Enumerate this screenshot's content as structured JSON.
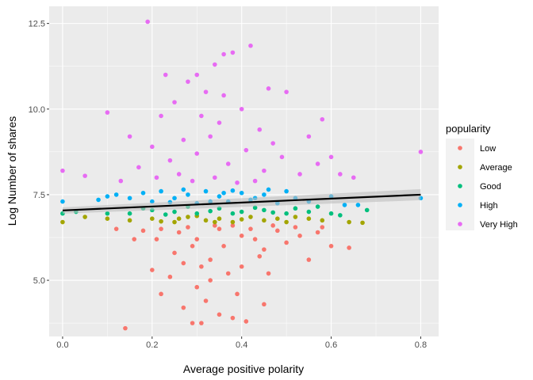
{
  "chart_data": {
    "type": "scatter",
    "xlabel": "Average positive polarity",
    "ylabel": "Log Number of shares",
    "xlim": [
      -0.03,
      0.84
    ],
    "ylim": [
      3.36,
      13.0
    ],
    "xticks": [
      0,
      0.2,
      0.4,
      0.6,
      0.8
    ],
    "xtick_labels": [
      "0.0",
      "0.2",
      "0.4",
      "0.6",
      "0.8"
    ],
    "yticks": [
      5,
      7.5,
      10,
      12.5
    ],
    "ytick_labels": [
      "5.0",
      "7.5",
      "10.0",
      "12.5"
    ],
    "grid": true,
    "legend": {
      "title": "popularity",
      "placement": "right"
    },
    "smooth_line": {
      "x": [
        0,
        0.8
      ],
      "y": [
        7.04,
        7.5
      ],
      "color": "#000000",
      "ci_color": "#BEBEBE"
    },
    "series": [
      {
        "name": "Low",
        "color": "#F8766D",
        "points": [
          [
            0.14,
            3.6
          ],
          [
            0.29,
            3.75
          ],
          [
            0.31,
            3.75
          ],
          [
            0.41,
            3.8
          ],
          [
            0.35,
            4.0
          ],
          [
            0.38,
            3.9
          ],
          [
            0.22,
            4.6
          ],
          [
            0.27,
            4.2
          ],
          [
            0.32,
            4.4
          ],
          [
            0.45,
            4.3
          ],
          [
            0.33,
            5.0
          ],
          [
            0.55,
            5.6
          ],
          [
            0.64,
            5.95
          ],
          [
            0.6,
            6.0
          ],
          [
            0.12,
            6.5
          ],
          [
            0.2,
            5.3
          ],
          [
            0.25,
            5.8
          ],
          [
            0.3,
            6.2
          ],
          [
            0.35,
            6.5
          ],
          [
            0.4,
            6.3
          ],
          [
            0.45,
            5.9
          ],
          [
            0.5,
            6.1
          ],
          [
            0.28,
            6.55
          ],
          [
            0.38,
            6.6
          ],
          [
            0.42,
            6.5
          ],
          [
            0.48,
            6.45
          ],
          [
            0.33,
            5.6
          ],
          [
            0.36,
            6.0
          ],
          [
            0.26,
            6.4
          ],
          [
            0.22,
            6.5
          ],
          [
            0.18,
            6.45
          ],
          [
            0.52,
            6.55
          ],
          [
            0.57,
            6.4
          ],
          [
            0.3,
            4.8
          ],
          [
            0.24,
            5.1
          ],
          [
            0.4,
            5.4
          ],
          [
            0.46,
            5.2
          ],
          [
            0.16,
            6.2
          ],
          [
            0.58,
            6.55
          ],
          [
            0.34,
            6.6
          ],
          [
            0.29,
            6.0
          ],
          [
            0.31,
            5.4
          ],
          [
            0.37,
            5.2
          ],
          [
            0.43,
            6.2
          ],
          [
            0.27,
            5.5
          ],
          [
            0.39,
            4.6
          ],
          [
            0.44,
            5.7
          ],
          [
            0.21,
            6.2
          ],
          [
            0.47,
            6.6
          ],
          [
            0.53,
            6.3
          ]
        ],
        "legend_label": "Low"
      },
      {
        "name": "Average",
        "color": "#A3A500",
        "points": [
          [
            0,
            6.7
          ],
          [
            0.05,
            6.85
          ],
          [
            0.1,
            6.8
          ],
          [
            0.15,
            6.75
          ],
          [
            0.2,
            6.8
          ],
          [
            0.25,
            6.7
          ],
          [
            0.28,
            6.85
          ],
          [
            0.32,
            6.75
          ],
          [
            0.35,
            6.8
          ],
          [
            0.38,
            6.7
          ],
          [
            0.42,
            6.85
          ],
          [
            0.45,
            6.75
          ],
          [
            0.48,
            6.8
          ],
          [
            0.5,
            6.7
          ],
          [
            0.52,
            6.85
          ],
          [
            0.55,
            6.8
          ],
          [
            0.58,
            6.75
          ],
          [
            0.64,
            6.7
          ],
          [
            0.67,
            6.68
          ],
          [
            0.22,
            6.72
          ],
          [
            0.3,
            6.88
          ],
          [
            0.4,
            6.78
          ],
          [
            0.34,
            6.7
          ],
          [
            0.26,
            6.8
          ]
        ],
        "legend_label": "Average"
      },
      {
        "name": "Good",
        "color": "#00BF7D",
        "points": [
          [
            0,
            6.95
          ],
          [
            0.03,
            7.0
          ],
          [
            0.1,
            6.95
          ],
          [
            0.15,
            6.95
          ],
          [
            0.2,
            7.05
          ],
          [
            0.25,
            7.0
          ],
          [
            0.3,
            6.95
          ],
          [
            0.35,
            7.1
          ],
          [
            0.4,
            7.0
          ],
          [
            0.45,
            7.05
          ],
          [
            0.5,
            6.95
          ],
          [
            0.52,
            7.1
          ],
          [
            0.55,
            7.0
          ],
          [
            0.57,
            7.15
          ],
          [
            0.6,
            6.95
          ],
          [
            0.62,
            6.9
          ],
          [
            0.68,
            7.05
          ],
          [
            0.18,
            7.1
          ],
          [
            0.28,
            7.15
          ],
          [
            0.38,
            6.95
          ],
          [
            0.43,
            7.12
          ],
          [
            0.33,
            7.02
          ],
          [
            0.47,
            6.98
          ],
          [
            0.23,
            6.92
          ]
        ],
        "legend_label": "Good"
      },
      {
        "name": "High",
        "color": "#00B0F6",
        "points": [
          [
            0,
            7.3
          ],
          [
            0.08,
            7.35
          ],
          [
            0.1,
            7.45
          ],
          [
            0.12,
            7.5
          ],
          [
            0.15,
            7.4
          ],
          [
            0.18,
            7.55
          ],
          [
            0.2,
            7.3
          ],
          [
            0.22,
            7.6
          ],
          [
            0.25,
            7.4
          ],
          [
            0.28,
            7.5
          ],
          [
            0.3,
            7.25
          ],
          [
            0.32,
            7.6
          ],
          [
            0.35,
            7.45
          ],
          [
            0.37,
            7.3
          ],
          [
            0.4,
            7.55
          ],
          [
            0.42,
            7.35
          ],
          [
            0.45,
            7.5
          ],
          [
            0.48,
            7.25
          ],
          [
            0.5,
            7.6
          ],
          [
            0.52,
            7.4
          ],
          [
            0.55,
            7.3
          ],
          [
            0.6,
            7.45
          ],
          [
            0.63,
            7.2
          ],
          [
            0.66,
            7.2
          ],
          [
            0.8,
            7.4
          ],
          [
            0.27,
            7.65
          ],
          [
            0.33,
            7.3
          ],
          [
            0.38,
            7.62
          ],
          [
            0.43,
            7.4
          ],
          [
            0.24,
            7.28
          ],
          [
            0.36,
            7.55
          ],
          [
            0.46,
            7.65
          ]
        ],
        "legend_label": "High"
      },
      {
        "name": "Very High",
        "color": "#E76BF3",
        "points": [
          [
            0.19,
            12.55
          ],
          [
            0.36,
            11.6
          ],
          [
            0.38,
            11.65
          ],
          [
            0.42,
            11.85
          ],
          [
            0.34,
            11.3
          ],
          [
            0.3,
            11.0
          ],
          [
            0.1,
            9.9
          ],
          [
            0.0,
            8.2
          ],
          [
            0.05,
            8.05
          ],
          [
            0.13,
            7.9
          ],
          [
            0.8,
            8.75
          ],
          [
            0.62,
            8.1
          ],
          [
            0.65,
            8.0
          ],
          [
            0.5,
            10.5
          ],
          [
            0.55,
            9.2
          ],
          [
            0.22,
            9.8
          ],
          [
            0.25,
            10.2
          ],
          [
            0.28,
            10.8
          ],
          [
            0.32,
            10.5
          ],
          [
            0.35,
            9.6
          ],
          [
            0.4,
            10.0
          ],
          [
            0.44,
            9.4
          ],
          [
            0.47,
            9.0
          ],
          [
            0.2,
            8.9
          ],
          [
            0.17,
            8.3
          ],
          [
            0.24,
            8.5
          ],
          [
            0.27,
            9.1
          ],
          [
            0.3,
            8.7
          ],
          [
            0.33,
            9.2
          ],
          [
            0.37,
            8.4
          ],
          [
            0.41,
            8.8
          ],
          [
            0.45,
            8.2
          ],
          [
            0.49,
            8.6
          ],
          [
            0.53,
            8.1
          ],
          [
            0.57,
            8.4
          ],
          [
            0.29,
            7.9
          ],
          [
            0.34,
            8.0
          ],
          [
            0.39,
            7.85
          ],
          [
            0.43,
            7.9
          ],
          [
            0.26,
            8.1
          ],
          [
            0.31,
            9.8
          ],
          [
            0.36,
            10.4
          ],
          [
            0.23,
            11.0
          ],
          [
            0.15,
            9.2
          ],
          [
            0.58,
            9.7
          ],
          [
            0.6,
            8.6
          ],
          [
            0.46,
            10.6
          ],
          [
            0.21,
            8.0
          ]
        ],
        "legend_label": "Very High"
      }
    ]
  }
}
